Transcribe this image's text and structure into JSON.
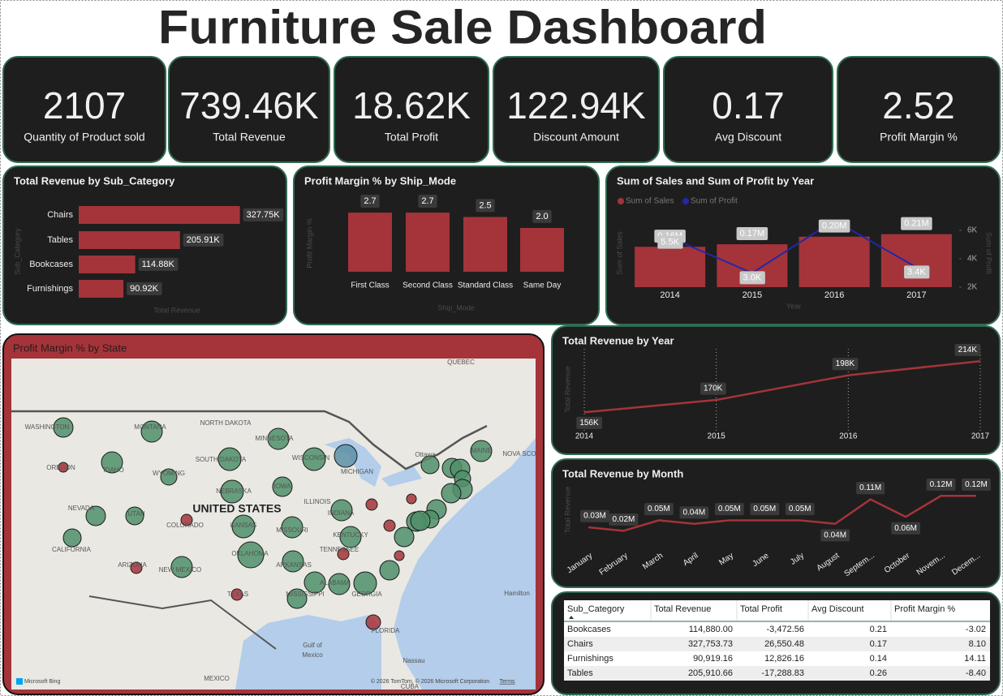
{
  "title": "Furniture Sale Dashboard",
  "kpis": [
    {
      "value": "2107",
      "label": "Quantity of Product sold"
    },
    {
      "value": "739.46K",
      "label": "Total Revenue"
    },
    {
      "value": "18.62K",
      "label": "Total Profit"
    },
    {
      "value": "122.94K",
      "label": "Discount Amount"
    },
    {
      "value": "0.17",
      "label": "Avg Discount"
    },
    {
      "value": "2.52",
      "label": "Profit Margin %"
    }
  ],
  "chart_data": [
    {
      "type": "bar",
      "orientation": "horizontal",
      "title": "Total Revenue by Sub_Category",
      "categories": [
        "Chairs",
        "Tables",
        "Bookcases",
        "Furnishings"
      ],
      "values": [
        327750,
        205910,
        114880,
        90920
      ],
      "value_labels": [
        "327.75K",
        "205.91K",
        "114.88K",
        "90.92K"
      ],
      "color": "#a4343a",
      "xlim": [
        0,
        330000
      ],
      "x_label": "Total Revenue",
      "y_label": "Sub_Category"
    },
    {
      "type": "bar",
      "title": "Profit Margin % by Ship_Mode",
      "categories": [
        "First Class",
        "Second Class",
        "Standard Class",
        "Same Day"
      ],
      "values": [
        2.7,
        2.7,
        2.5,
        2.0
      ],
      "value_labels": [
        "2.7",
        "2.7",
        "2.5",
        "2.0"
      ],
      "color": "#a4343a",
      "ylim": [
        0,
        3
      ],
      "x_label": "Ship_Mode",
      "y_label": "Profit Margin %"
    },
    {
      "type": "combo",
      "title": "Sum of Sales and Sum of Profit by Year",
      "categories": [
        "2014",
        "2015",
        "2016",
        "2017"
      ],
      "series": [
        {
          "name": "Sum of Sales",
          "color": "#a4343a",
          "values": [
            160000,
            170000,
            200000,
            210000
          ],
          "value_labels": [
            "0.16M",
            "0.17M",
            "0.20M",
            "0.21M"
          ]
        },
        {
          "name": "Sum of Profit",
          "color": "#2228a8",
          "axis": "y2",
          "values": [
            5500,
            3000,
            6700,
            3400
          ],
          "value_labels": [
            "5.5K",
            "3.0K",
            null,
            "3.4K"
          ]
        }
      ],
      "ylim": [
        0,
        270000
      ],
      "y2lim": [
        2000,
        6800
      ],
      "y2ticks": [
        {
          "value": 2000,
          "label": "2K"
        },
        {
          "value": 4000,
          "label": "4K"
        },
        {
          "value": 6000,
          "label": "6K"
        }
      ],
      "x_label": "Year",
      "y_label": "Sum of Sales",
      "y2_label": "Sum of Profit",
      "legend": "top-left"
    },
    {
      "type": "line",
      "title": "Total Revenue by Year",
      "categories": [
        "2014",
        "2015",
        "2016",
        "2017"
      ],
      "values": [
        156000,
        170000,
        198000,
        214000
      ],
      "value_labels": [
        "156K",
        "170K",
        "198K",
        "214K"
      ],
      "color": "#a4343a",
      "ylim": [
        136000,
        228000
      ],
      "grid": true,
      "y_label": "Total Revenue"
    },
    {
      "type": "line",
      "title": "Total Revenue by Month",
      "categories": [
        "January",
        "February",
        "March",
        "April",
        "May",
        "June",
        "July",
        "August",
        "Septem...",
        "October",
        "Novem...",
        "Decem..."
      ],
      "values": [
        30000,
        20000,
        50000,
        40000,
        50000,
        50000,
        50000,
        40000,
        110000,
        60000,
        120000,
        120000
      ],
      "value_labels": [
        "0.03M",
        "0.02M",
        "0.05M",
        "0.04M",
        "0.05M",
        "0.05M",
        "0.05M",
        "0.04M",
        "0.11M",
        "0.06M",
        "0.12M",
        "0.12M"
      ],
      "color": "#a4343a",
      "ylim": [
        0,
        160000
      ],
      "y_label": "Total Revenue"
    }
  ],
  "map": {
    "title": "Profit Margin % by State",
    "labels": [
      "QUEBEC",
      "NORTH DAKOTA",
      "MONTANA",
      "WASHINGTON",
      "MINNESOTA",
      "SOUTH DAKOTA",
      "WISCONSIN",
      "MICHIGAN",
      "IDAHO",
      "WYOMING",
      "Ottawa",
      "OREGON",
      "NEBRASKA",
      "IOWA",
      "ILLINOIS",
      "NEVADA",
      "UTAH",
      "COLORADO",
      "KANSAS",
      "MISSOURI",
      "INDIANA",
      "KENTUCKY",
      "CALIFORNIA",
      "OKLAHOMA",
      "ARKANSAS",
      "TENNESSEE",
      "ARIZONA",
      "NEW MEXICO",
      "TEXAS",
      "MISSISSIPPI",
      "ALABAMA",
      "GEORGIA",
      "FLORIDA",
      "Gulf of",
      "Mexico",
      "MEXICO",
      "Nassau",
      "Hamilton",
      "MAINE",
      "NOVA SCO",
      "CUBA"
    ],
    "country": "UNITED STATES",
    "attribution": "Microsoft Bing",
    "copyright": "© 2026 TomTom, © 2026 Microsoft Corporation",
    "terms": "Terms"
  },
  "table": {
    "header": [
      "Sub_Category",
      "Total Revenue",
      "Total Profit",
      "Avg Discount",
      "Profit Margin %"
    ],
    "rows": [
      [
        "Bookcases",
        "114,880.00",
        "-3,472.56",
        "0.21",
        "-3.02"
      ],
      [
        "Chairs",
        "327,753.73",
        "26,550.48",
        "0.17",
        "8.10"
      ],
      [
        "Furnishings",
        "90,919.16",
        "12,826.16",
        "0.14",
        "14.11"
      ],
      [
        "Tables",
        "205,910.66",
        "-17,288.83",
        "0.26",
        "-8.40"
      ]
    ]
  }
}
